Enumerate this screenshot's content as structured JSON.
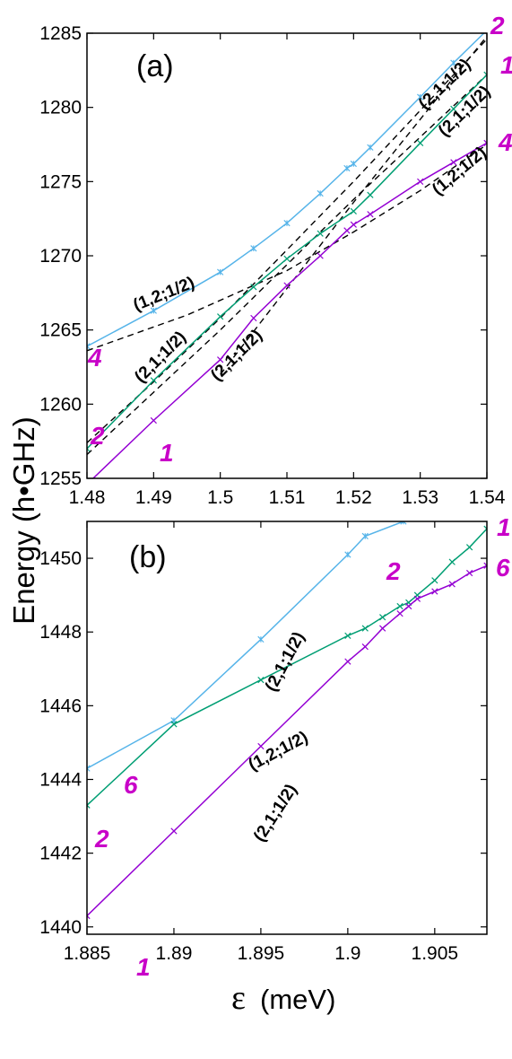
{
  "figure": {
    "ylabel": "Energy (h•GHz)",
    "xlabel_symbol": "ε",
    "xlabel_unit": "(meV)"
  },
  "colors": {
    "blue": "#56b4e9",
    "green": "#009e73",
    "purple": "#9400d3",
    "magenta": "#c800c8",
    "dashed": "#000000"
  },
  "chart_data": [
    {
      "type": "line",
      "panel": "(a)",
      "xlim": [
        1.48,
        1.54
      ],
      "ylim": [
        1255,
        1285
      ],
      "xticks": [
        "1.48",
        "1.49",
        "1.5",
        "1.51",
        "1.52",
        "1.53",
        "1.54"
      ],
      "yticks": [
        "1255",
        "1260",
        "1265",
        "1270",
        "1275",
        "1280",
        "1285"
      ],
      "series": [
        {
          "color": "blue",
          "x": [
            1.48,
            1.49,
            1.5,
            1.505,
            1.51,
            1.515,
            1.519,
            1.52,
            1.5225,
            1.53,
            1.535,
            1.54
          ],
          "y": [
            1263.9,
            1266.3,
            1268.9,
            1270.5,
            1272.2,
            1274.2,
            1275.9,
            1276.2,
            1277.3,
            1280.7,
            1283.0,
            1285.2
          ]
        },
        {
          "color": "green",
          "x": [
            1.48,
            1.49,
            1.5,
            1.505,
            1.51,
            1.515,
            1.52,
            1.5225,
            1.53,
            1.535,
            1.54
          ],
          "y": [
            1257.0,
            1261.6,
            1265.9,
            1267.9,
            1269.8,
            1271.5,
            1273.0,
            1274.1,
            1277.6,
            1279.9,
            1282.2
          ]
        },
        {
          "color": "purple",
          "x": [
            1.48,
            1.49,
            1.5,
            1.505,
            1.51,
            1.515,
            1.519,
            1.52,
            1.5225,
            1.53,
            1.535,
            1.54
          ],
          "y": [
            1254.6,
            1258.9,
            1263.0,
            1265.8,
            1268.0,
            1270.0,
            1271.7,
            1272.1,
            1272.8,
            1275.0,
            1276.3,
            1277.6
          ]
        }
      ],
      "dashed": [
        {
          "x": [
            1.48,
            1.495,
            1.51,
            1.52,
            1.53,
            1.54
          ],
          "y": [
            1263.6,
            1266.0,
            1269.0,
            1271.6,
            1274.4,
            1277.5
          ]
        },
        {
          "x": [
            1.48,
            1.49,
            1.5,
            1.51,
            1.52,
            1.53,
            1.54
          ],
          "y": [
            1257.4,
            1261.5,
            1265.8,
            1270.4,
            1275.0,
            1279.8,
            1284.6
          ]
        },
        {
          "x": [
            1.48,
            1.49,
            1.5,
            1.51,
            1.52,
            1.53,
            1.54
          ],
          "y": [
            1256.6,
            1260.8,
            1265.0,
            1269.4,
            1273.8,
            1278.0,
            1282.2
          ]
        },
        {
          "x": [
            1.5,
            1.51,
            1.52,
            1.53,
            1.54
          ],
          "y": [
            1262.0,
            1267.8,
            1273.6,
            1279.2,
            1284.8
          ]
        }
      ],
      "annotations": [
        "(2,1;1/2)",
        "(2,1;1/2)",
        "(1,2;1/2)",
        "(1,2;1/2)",
        "(2,1;1/2)",
        "(2,1;1/2)"
      ],
      "state_labels": [
        "2",
        "1",
        "4",
        "4",
        "2",
        "1"
      ]
    },
    {
      "type": "line",
      "panel": "(b)",
      "xlim": [
        1.885,
        1.908
      ],
      "ylim": [
        1439.8,
        1451.0
      ],
      "xticks": [
        "1.885",
        "1.89",
        "1.895",
        "1.9",
        "1.905"
      ],
      "yticks": [
        "1440",
        "1442",
        "1444",
        "1446",
        "1448",
        "1450"
      ],
      "series": [
        {
          "color": "blue",
          "x": [
            1.885,
            1.89,
            1.895,
            1.9,
            1.901,
            1.9032
          ],
          "y": [
            1444.3,
            1445.6,
            1447.8,
            1450.1,
            1450.6,
            1451.0
          ]
        },
        {
          "color": "green",
          "x": [
            1.885,
            1.89,
            1.895,
            1.9,
            1.901,
            1.902,
            1.903,
            1.9035,
            1.904,
            1.905,
            1.906,
            1.907,
            1.908
          ],
          "y": [
            1443.3,
            1445.5,
            1446.7,
            1447.9,
            1448.1,
            1448.4,
            1448.7,
            1448.8,
            1449.0,
            1449.4,
            1449.9,
            1450.3,
            1450.8
          ]
        },
        {
          "color": "purple",
          "x": [
            1.885,
            1.89,
            1.895,
            1.9,
            1.901,
            1.902,
            1.903,
            1.9035,
            1.904,
            1.905,
            1.906,
            1.907,
            1.908
          ],
          "y": [
            1440.3,
            1442.6,
            1444.9,
            1447.2,
            1447.6,
            1448.1,
            1448.5,
            1448.7,
            1448.9,
            1449.1,
            1449.3,
            1449.6,
            1449.8
          ]
        }
      ],
      "annotations": [
        "(2,1;1/2)",
        "(1,2;1/2)",
        "(2,1;1/2)"
      ],
      "state_labels": [
        "1",
        "2",
        "6",
        "6",
        "2",
        "1"
      ]
    }
  ]
}
